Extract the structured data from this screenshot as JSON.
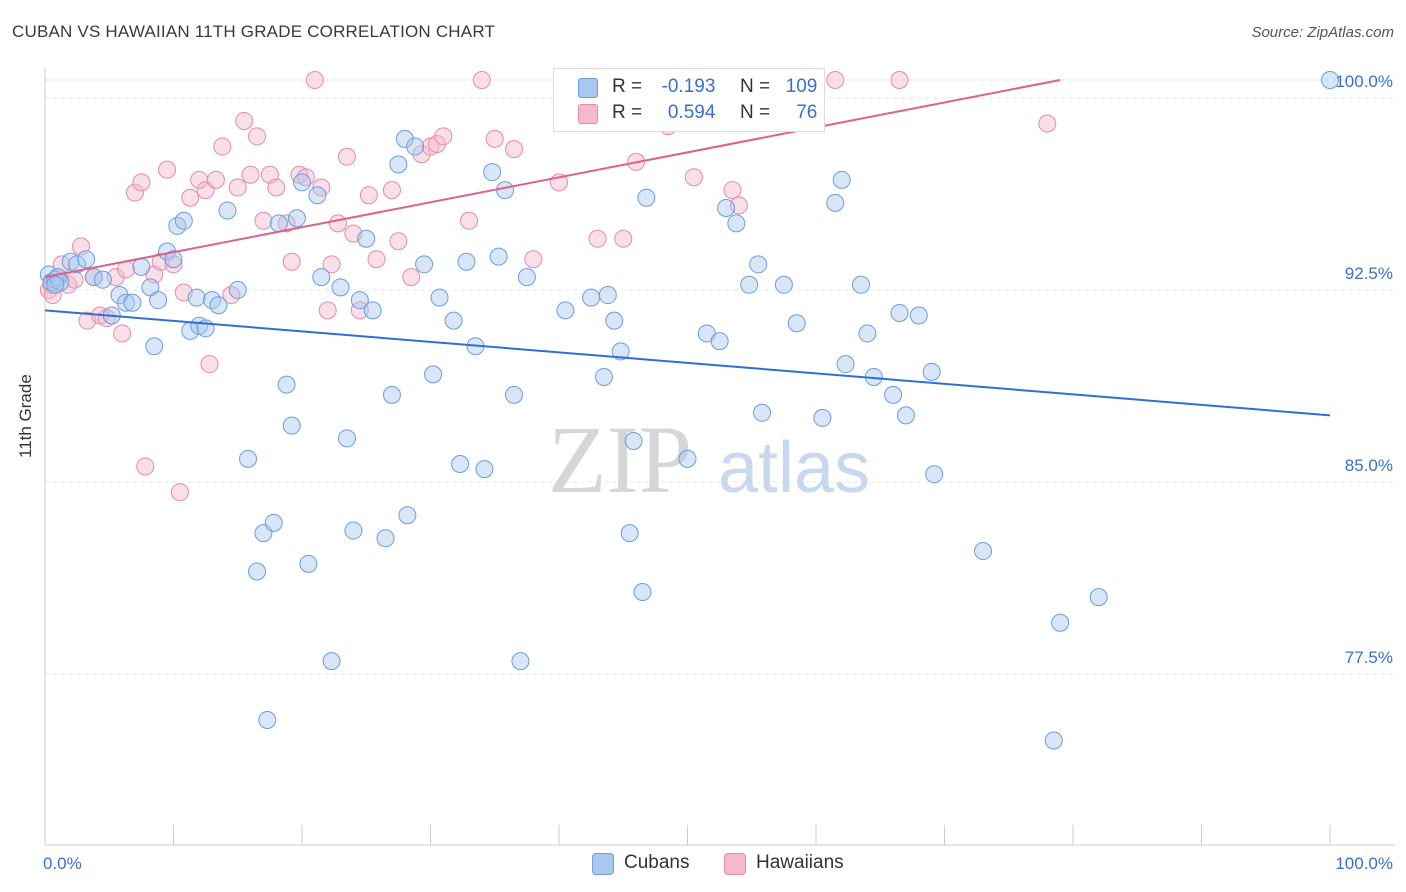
{
  "title": "CUBAN VS HAWAIIAN 11TH GRADE CORRELATION CHART",
  "source": "Source: ZipAtlas.com",
  "watermark": {
    "zip": "ZIP",
    "atlas": "atlas"
  },
  "legend": {
    "rows": [
      {
        "r_label": "R =",
        "r_value": "-0.193",
        "n_label": "N =",
        "n_value": "109"
      },
      {
        "r_label": "R =",
        "r_value": "0.594",
        "n_label": "N =",
        "n_value": "76"
      }
    ]
  },
  "bottom_legend": {
    "cubans": "Cubans",
    "hawaiians": "Hawaiians"
  },
  "colors": {
    "cubans_fill": "#a8c8f0",
    "cubans_stroke": "#6a9ee0",
    "cubans_line": "#2f6fd0",
    "hawaiians_fill": "#f5b8cc",
    "hawaiians_stroke": "#e88aa8",
    "hawaiians_line": "#e0608a",
    "tick_label": "#3a6fd0"
  },
  "chart_data": {
    "type": "scatter",
    "title": "CUBAN VS HAWAIIAN 11TH GRADE CORRELATION CHART",
    "xlabel": "",
    "ylabel": "11th Grade",
    "xlim": [
      0,
      100
    ],
    "ylim": [
      71.5,
      101.5
    ],
    "x_tick_labels": [
      "0.0%",
      "100.0%"
    ],
    "y_ticks": [
      77.5,
      85.0,
      92.5,
      100.0
    ],
    "y_tick_labels": [
      "77.5%",
      "85.0%",
      "92.5%",
      "100.0%"
    ],
    "grid": true,
    "legend_position": "top-center",
    "series": [
      {
        "name": "Cubans",
        "r": -0.193,
        "n": 109,
        "trend": {
          "x": [
            0,
            100
          ],
          "y": [
            91.0,
            86.9
          ]
        },
        "points": [
          [
            0.3,
            92.4
          ],
          [
            0.5,
            92.1
          ],
          [
            0.8,
            92.2
          ],
          [
            1.0,
            92.3
          ],
          [
            1.2,
            92.1
          ],
          [
            2.0,
            92.9
          ],
          [
            2.5,
            92.8
          ],
          [
            3.2,
            93.0
          ],
          [
            3.8,
            92.3
          ],
          [
            4.5,
            92.2
          ],
          [
            5.2,
            90.8
          ],
          [
            5.8,
            91.6
          ],
          [
            6.3,
            91.3
          ],
          [
            6.8,
            91.3
          ],
          [
            7.5,
            92.7
          ],
          [
            8.2,
            91.9
          ],
          [
            8.5,
            89.6
          ],
          [
            8.8,
            91.4
          ],
          [
            9.5,
            93.3
          ],
          [
            10.0,
            93.0
          ],
          [
            10.3,
            94.3
          ],
          [
            10.8,
            94.5
          ],
          [
            11.3,
            90.2
          ],
          [
            11.8,
            91.5
          ],
          [
            12.0,
            90.4
          ],
          [
            12.5,
            90.3
          ],
          [
            13.0,
            91.4
          ],
          [
            13.5,
            91.2
          ],
          [
            14.2,
            94.9
          ],
          [
            15.0,
            91.8
          ],
          [
            15.8,
            85.2
          ],
          [
            16.5,
            80.8
          ],
          [
            17.0,
            82.3
          ],
          [
            17.3,
            75.0
          ],
          [
            17.8,
            82.7
          ],
          [
            18.2,
            94.4
          ],
          [
            18.8,
            88.1
          ],
          [
            19.2,
            86.5
          ],
          [
            19.6,
            94.6
          ],
          [
            20.0,
            96.0
          ],
          [
            20.5,
            81.1
          ],
          [
            21.2,
            95.5
          ],
          [
            21.5,
            92.3
          ],
          [
            22.3,
            77.3
          ],
          [
            23.0,
            91.9
          ],
          [
            23.5,
            86.0
          ],
          [
            24.0,
            82.4
          ],
          [
            24.5,
            91.4
          ],
          [
            25.0,
            93.8
          ],
          [
            25.5,
            91.0
          ],
          [
            26.5,
            82.1
          ],
          [
            27.0,
            87.7
          ],
          [
            27.5,
            96.7
          ],
          [
            28.0,
            97.7
          ],
          [
            28.2,
            83.0
          ],
          [
            28.8,
            97.4
          ],
          [
            29.5,
            92.8
          ],
          [
            30.2,
            88.5
          ],
          [
            30.7,
            91.5
          ],
          [
            31.8,
            90.6
          ],
          [
            32.3,
            85.0
          ],
          [
            32.8,
            92.9
          ],
          [
            33.5,
            89.6
          ],
          [
            34.2,
            84.8
          ],
          [
            34.8,
            96.4
          ],
          [
            35.3,
            93.1
          ],
          [
            35.8,
            95.7
          ],
          [
            36.5,
            87.7
          ],
          [
            37.0,
            77.3
          ],
          [
            37.5,
            92.3
          ],
          [
            40.5,
            91.0
          ],
          [
            42.5,
            91.5
          ],
          [
            43.5,
            88.4
          ],
          [
            43.8,
            91.6
          ],
          [
            44.3,
            90.6
          ],
          [
            44.8,
            89.4
          ],
          [
            45.5,
            82.3
          ],
          [
            45.8,
            85.9
          ],
          [
            46.5,
            80.0
          ],
          [
            46.8,
            95.4
          ],
          [
            50.0,
            85.2
          ],
          [
            51.5,
            90.1
          ],
          [
            52.5,
            89.8
          ],
          [
            53.0,
            95.0
          ],
          [
            53.8,
            94.4
          ],
          [
            54.8,
            92.0
          ],
          [
            55.5,
            92.8
          ],
          [
            55.8,
            87.0
          ],
          [
            57.5,
            92.0
          ],
          [
            58.5,
            90.5
          ],
          [
            60.5,
            86.8
          ],
          [
            61.5,
            95.2
          ],
          [
            62.0,
            96.1
          ],
          [
            62.3,
            88.9
          ],
          [
            63.5,
            92.0
          ],
          [
            64.0,
            90.1
          ],
          [
            64.5,
            88.4
          ],
          [
            66.0,
            87.7
          ],
          [
            66.5,
            90.9
          ],
          [
            67.0,
            86.9
          ],
          [
            68.0,
            90.8
          ],
          [
            69.0,
            88.6
          ],
          [
            69.2,
            84.6
          ],
          [
            73.0,
            81.6
          ],
          [
            78.5,
            74.2
          ],
          [
            79.0,
            78.8
          ],
          [
            82.0,
            79.8
          ],
          [
            100.0,
            100.0
          ],
          [
            0.8,
            92.0
          ]
        ]
      },
      {
        "name": "Hawaiians",
        "r": 0.594,
        "n": 76,
        "trend": {
          "x": [
            0,
            79
          ],
          "y": [
            92.3,
            100.0
          ]
        },
        "points": [
          [
            0.3,
            91.8
          ],
          [
            0.5,
            92.0
          ],
          [
            0.6,
            91.6
          ],
          [
            1.0,
            92.3
          ],
          [
            1.3,
            92.8
          ],
          [
            1.8,
            92.0
          ],
          [
            2.3,
            92.2
          ],
          [
            2.8,
            93.5
          ],
          [
            3.3,
            90.6
          ],
          [
            3.8,
            92.3
          ],
          [
            4.3,
            90.8
          ],
          [
            4.8,
            90.7
          ],
          [
            5.5,
            92.3
          ],
          [
            6.0,
            90.1
          ],
          [
            6.3,
            92.6
          ],
          [
            7.0,
            95.6
          ],
          [
            7.5,
            96.0
          ],
          [
            7.8,
            84.9
          ],
          [
            8.5,
            92.4
          ],
          [
            9.0,
            92.9
          ],
          [
            9.5,
            96.5
          ],
          [
            10.0,
            92.8
          ],
          [
            10.5,
            83.9
          ],
          [
            10.8,
            91.7
          ],
          [
            11.3,
            95.4
          ],
          [
            12.0,
            96.1
          ],
          [
            12.5,
            95.7
          ],
          [
            12.8,
            88.9
          ],
          [
            13.3,
            96.1
          ],
          [
            13.8,
            97.4
          ],
          [
            14.5,
            91.6
          ],
          [
            15.0,
            95.8
          ],
          [
            15.5,
            98.4
          ],
          [
            16.0,
            96.3
          ],
          [
            16.5,
            97.8
          ],
          [
            17.0,
            94.5
          ],
          [
            17.5,
            96.3
          ],
          [
            18.0,
            95.8
          ],
          [
            18.8,
            94.4
          ],
          [
            19.2,
            92.9
          ],
          [
            19.8,
            96.3
          ],
          [
            20.3,
            96.2
          ],
          [
            21.0,
            100.0
          ],
          [
            21.5,
            95.8
          ],
          [
            22.0,
            91.0
          ],
          [
            22.3,
            92.8
          ],
          [
            22.8,
            94.4
          ],
          [
            23.5,
            97.0
          ],
          [
            24.0,
            94.0
          ],
          [
            24.5,
            91.0
          ],
          [
            25.2,
            95.5
          ],
          [
            25.8,
            93.0
          ],
          [
            27.0,
            95.7
          ],
          [
            27.5,
            93.7
          ],
          [
            28.5,
            92.3
          ],
          [
            29.3,
            97.1
          ],
          [
            30.0,
            97.4
          ],
          [
            30.5,
            97.5
          ],
          [
            31.0,
            97.8
          ],
          [
            33.0,
            94.5
          ],
          [
            34.0,
            100.0
          ],
          [
            35.0,
            97.7
          ],
          [
            36.5,
            97.3
          ],
          [
            38.0,
            93.0
          ],
          [
            40.0,
            96.0
          ],
          [
            43.0,
            93.8
          ],
          [
            45.0,
            93.8
          ],
          [
            46.0,
            96.8
          ],
          [
            48.5,
            98.2
          ],
          [
            50.5,
            96.2
          ],
          [
            52.0,
            100.0
          ],
          [
            53.5,
            95.7
          ],
          [
            54.0,
            95.1
          ],
          [
            61.5,
            100.0
          ],
          [
            66.5,
            100.0
          ],
          [
            78.0,
            98.3
          ]
        ]
      }
    ]
  }
}
